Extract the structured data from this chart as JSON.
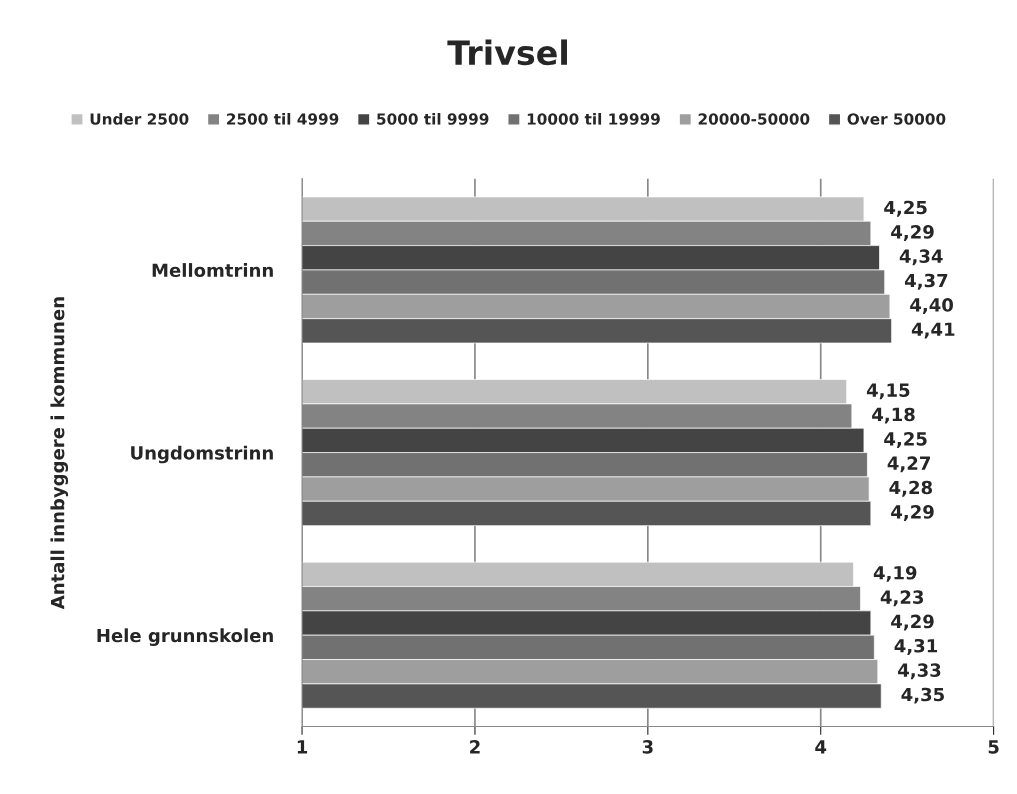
{
  "chart_data": {
    "type": "bar",
    "orientation": "horizontal",
    "title": "Trivsel",
    "ylabel": "Antall innbyggere i kommunen",
    "categories": [
      "Mellomtrinn",
      "Ungdomstrinn",
      "Hele grunnskolen"
    ],
    "series": [
      {
        "name": "Under 2500",
        "color": "#c0c0c0",
        "values": [
          4.25,
          4.15,
          4.19
        ],
        "value_labels": [
          "4,25",
          "4,15",
          "4,19"
        ]
      },
      {
        "name": "2500 til 4999",
        "color": "#838383",
        "values": [
          4.29,
          4.18,
          4.23
        ],
        "value_labels": [
          "4,29",
          "4,18",
          "4,23"
        ]
      },
      {
        "name": "5000 til 9999",
        "color": "#444444",
        "values": [
          4.34,
          4.25,
          4.29
        ],
        "value_labels": [
          "4,34",
          "4,25",
          "4,29"
        ]
      },
      {
        "name": "10000 til 19999",
        "color": "#717171",
        "values": [
          4.37,
          4.27,
          4.31
        ],
        "value_labels": [
          "4,37",
          "4,27",
          "4,31"
        ]
      },
      {
        "name": "20000-50000",
        "color": "#9e9e9e",
        "values": [
          4.4,
          4.28,
          4.33
        ],
        "value_labels": [
          "4,40",
          "4,28",
          "4,33"
        ]
      },
      {
        "name": "Over 50000",
        "color": "#555555",
        "values": [
          4.41,
          4.29,
          4.35
        ],
        "value_labels": [
          "4,41",
          "4,29",
          "4,35"
        ]
      }
    ],
    "xlim": [
      1,
      5
    ],
    "xticks": [
      1,
      2,
      3,
      4,
      5
    ],
    "grid": "x",
    "legend": "top"
  }
}
